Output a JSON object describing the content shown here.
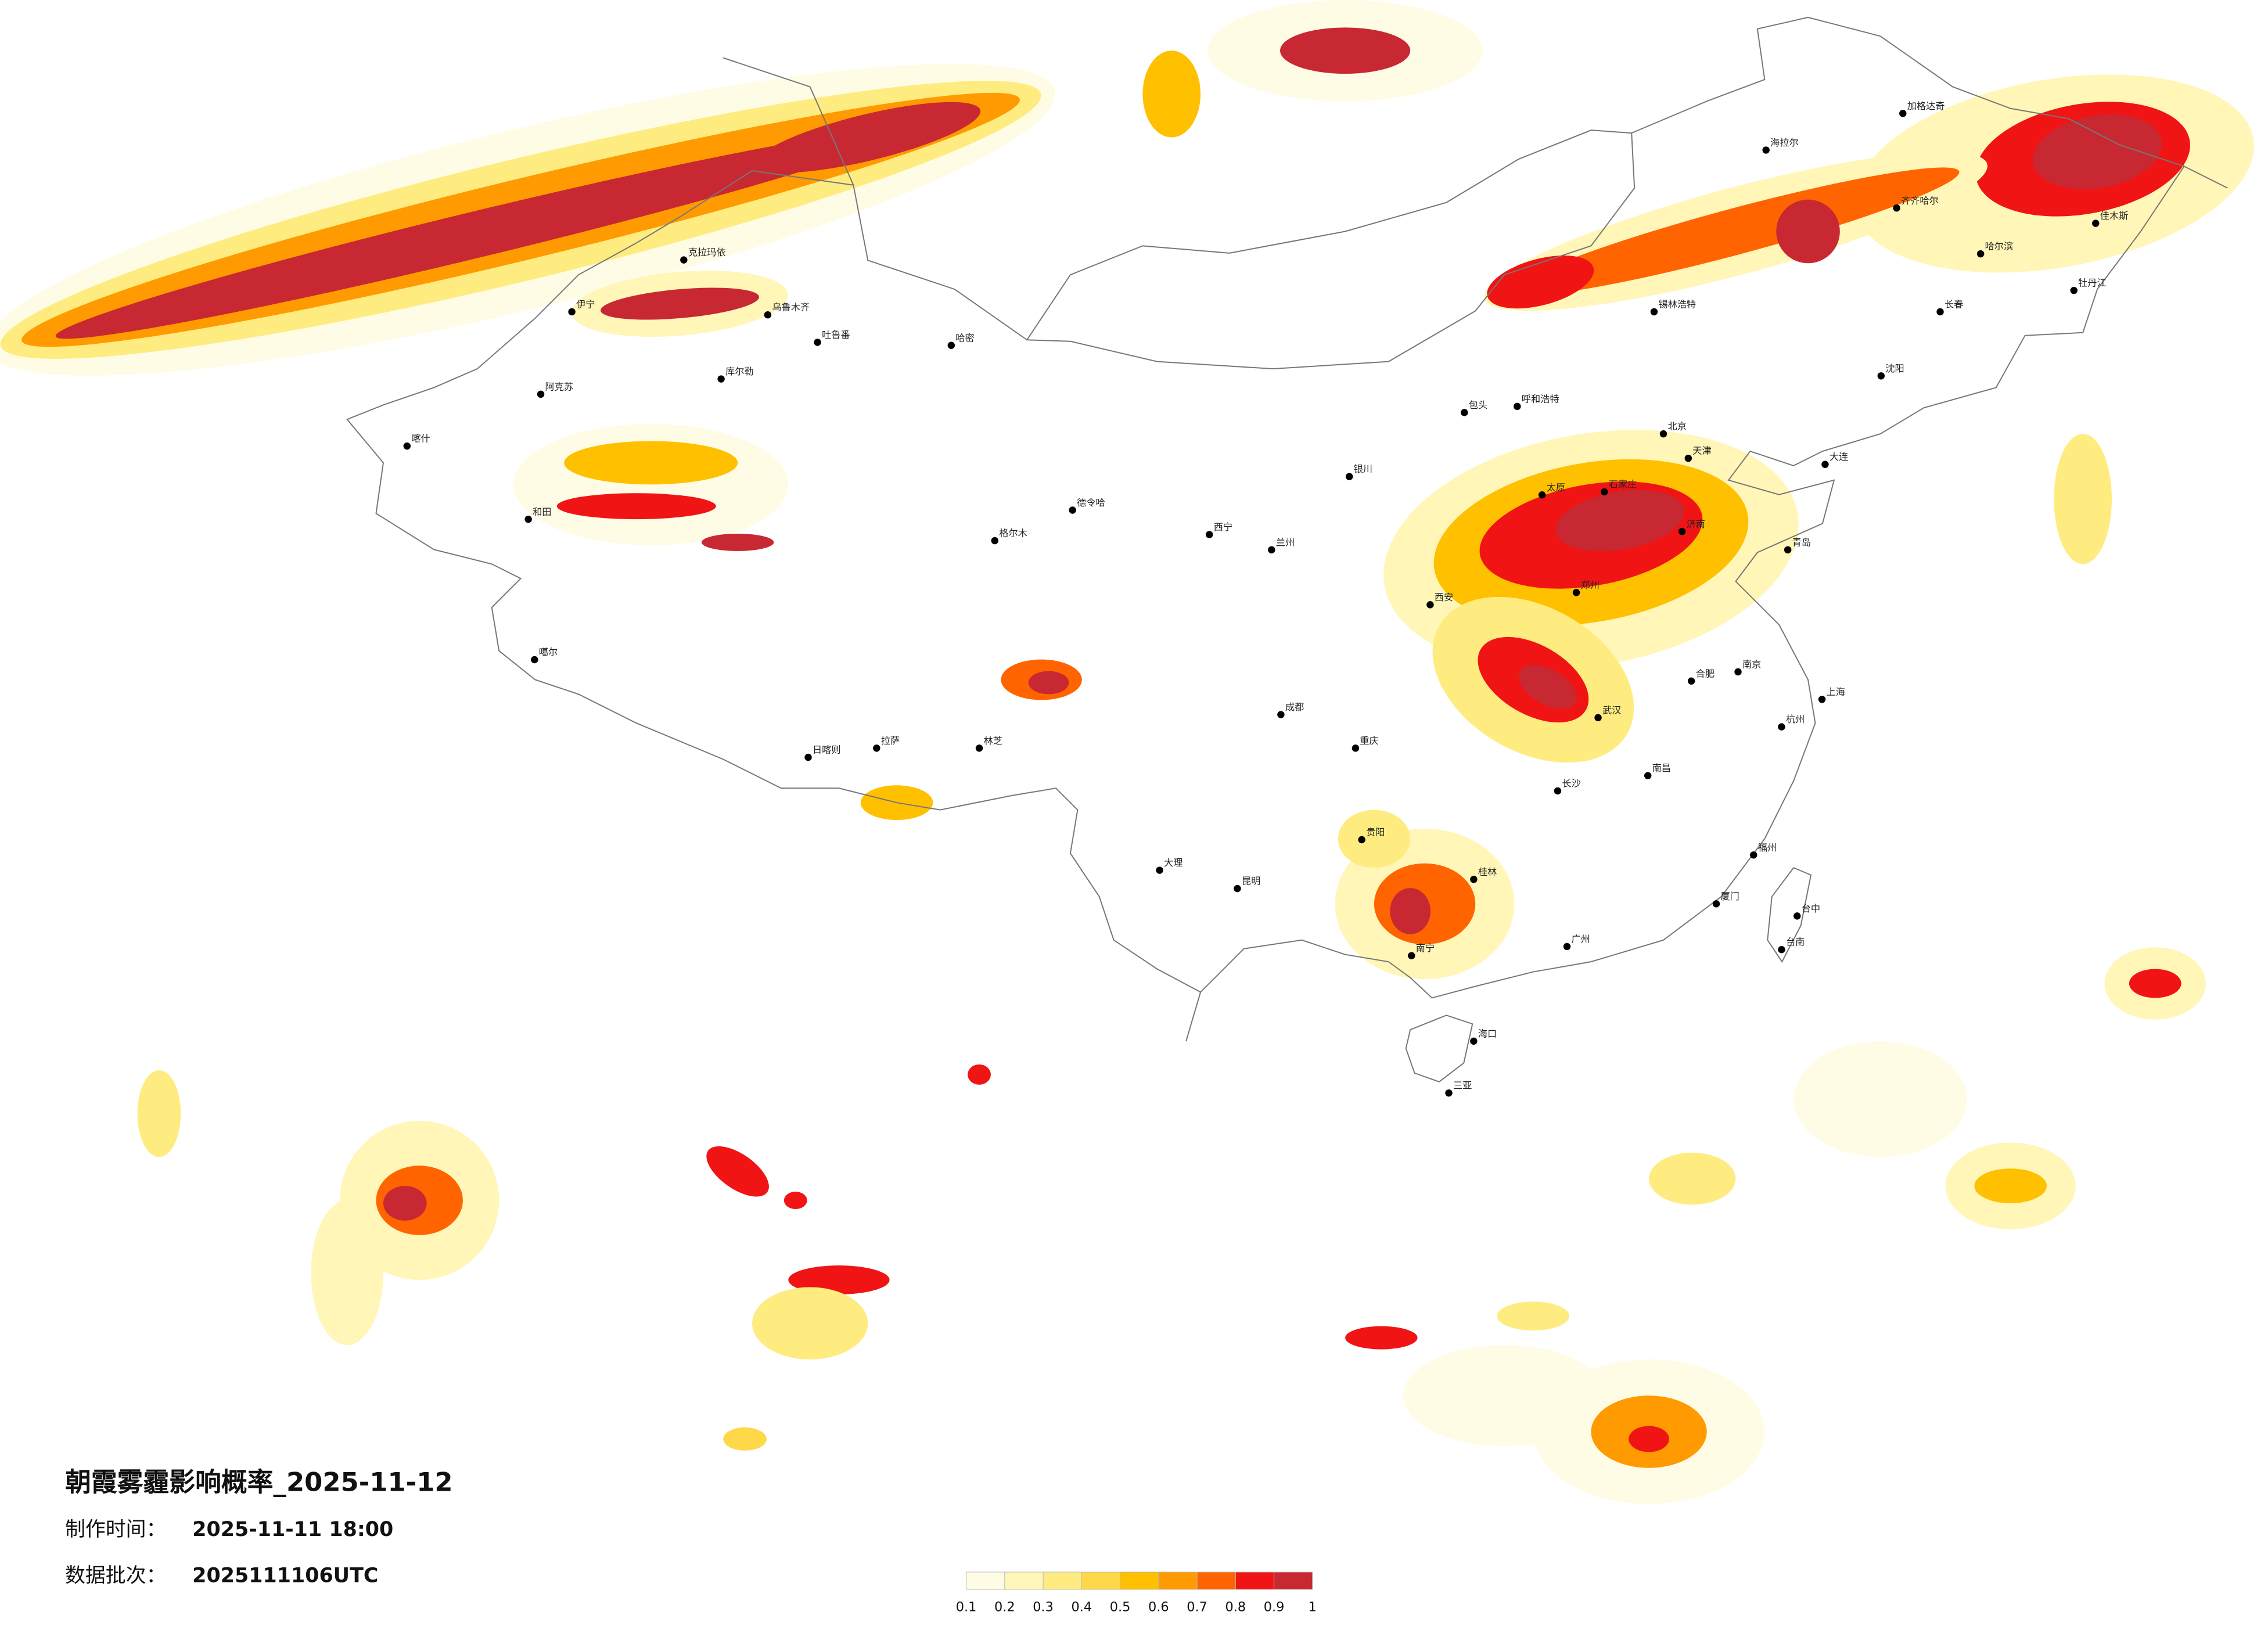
{
  "title": "朝霞雾霾影响概率_2025-11-12",
  "production_time": {
    "label": "制作时间：",
    "value": "2025-11-11 18:00"
  },
  "data_batch": {
    "label": "数据批次：",
    "value": "2025111106UTC"
  },
  "colorbar": {
    "ticks": [
      0.1,
      0.2,
      0.3,
      0.4,
      0.5,
      0.6,
      0.7,
      0.8,
      0.9,
      1
    ],
    "colors": [
      "#fffce6",
      "#fff6b8",
      "#ffec80",
      "#ffd84a",
      "#ffc000",
      "#ff9a00",
      "#ff6400",
      "#f01414",
      "#c82832"
    ]
  },
  "cities": [
    "乌鲁木齐",
    "喀什",
    "和田",
    "阿克苏",
    "伊宁",
    "库尔勒",
    "哈密",
    "吐鲁番",
    "克拉玛依",
    "噶尔",
    "日喀则",
    "拉萨",
    "林芝",
    "格尔木",
    "德令哈",
    "西宁",
    "兰州",
    "银川",
    "呼和浩特",
    "包头",
    "太原",
    "石家庄",
    "北京",
    "天津",
    "济南",
    "青岛",
    "大连",
    "沈阳",
    "长春",
    "哈尔滨",
    "齐齐哈尔",
    "海拉尔",
    "加格达奇",
    "佳木斯",
    "牡丹江",
    "锡林浩特",
    "郑州",
    "西安",
    "武汉",
    "合肥",
    "南京",
    "上海",
    "杭州",
    "南昌",
    "长沙",
    "福州",
    "厦门",
    "广州",
    "南宁",
    "桂林",
    "贵阳",
    "昆明",
    "大理",
    "成都",
    "重庆",
    "海口",
    "三亚",
    "台中",
    "台南"
  ]
}
